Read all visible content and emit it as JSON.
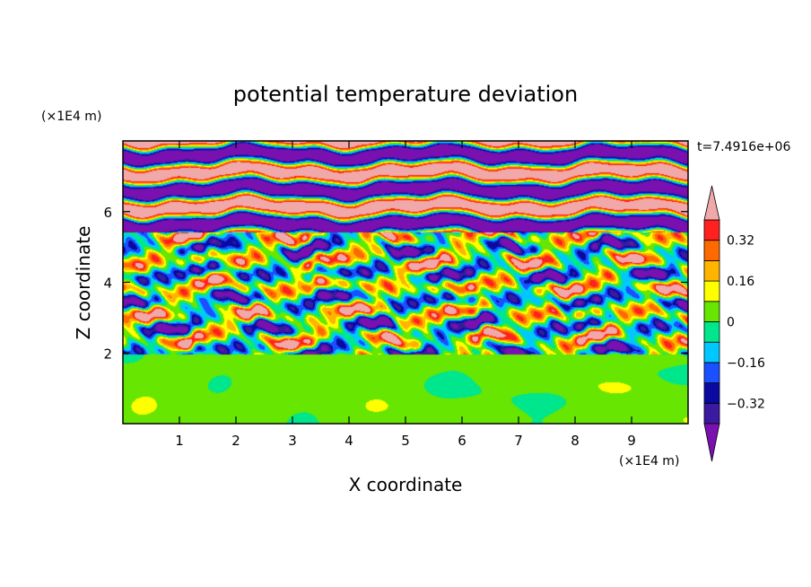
{
  "chart_data": {
    "type": "heatmap",
    "title": "potential temperature deviation",
    "time_label": "t=7.4916e+06",
    "xlabel": "X coordinate",
    "ylabel": "Z coordinate",
    "x_unit": "(×1E4 m)",
    "y_unit": "(×1E4 m)",
    "xlim": [
      0,
      10
    ],
    "ylim": [
      0,
      8
    ],
    "x_ticks": [
      "1",
      "2",
      "3",
      "4",
      "5",
      "6",
      "7",
      "8",
      "9"
    ],
    "y_ticks": [
      "2",
      "4",
      "6"
    ],
    "colorbar": {
      "levels": [
        -0.4,
        -0.32,
        -0.24,
        -0.16,
        -0.08,
        0,
        0.08,
        0.16,
        0.24,
        0.32,
        0.4
      ],
      "colors": [
        "#3a1a9e",
        "#0a0aa0",
        "#1a50ff",
        "#00c8ff",
        "#00e68c",
        "#66e600",
        "#ffff00",
        "#ffb400",
        "#ff6a00",
        "#ff2020"
      ],
      "under_color": "#7a10b0",
      "over_color": "#f0a8a8",
      "labels": [
        {
          "value": 0.32,
          "text": "0.32"
        },
        {
          "value": 0.16,
          "text": "0.16"
        },
        {
          "value": 0,
          "text": "0"
        },
        {
          "value": -0.16,
          "text": "−0.16"
        },
        {
          "value": -0.32,
          "text": "−0.32"
        }
      ]
    },
    "regions": [
      {
        "z_range": [
          0,
          1.95
        ],
        "description": "boundary layer, weak values around 0 to 0.08"
      },
      {
        "z_range": [
          1.95,
          5.4
        ],
        "description": "mixed strong positive/negative layers"
      },
      {
        "z_range": [
          5.4,
          8
        ],
        "description": "alternating layers of values above 0.4 and below -0.4"
      }
    ]
  }
}
